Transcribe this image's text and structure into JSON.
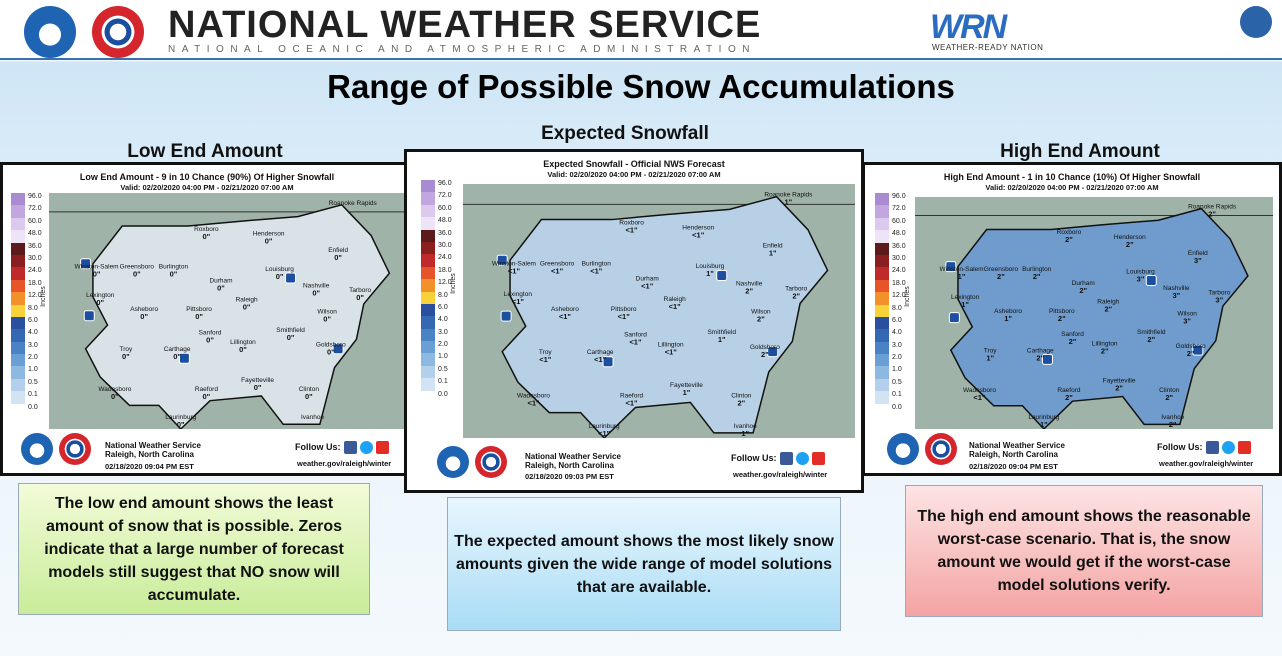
{
  "header": {
    "agency": "NATIONAL WEATHER SERVICE",
    "subagency": "NATIONAL OCEANIC AND ATMOSPHERIC ADMINISTRATION",
    "wrn_letters": "WRN",
    "wrn_tagline": "WEATHER-READY NATION",
    "logos": [
      "noaa-logo",
      "nws-logo",
      "wrn-logo",
      "commerce-logo"
    ]
  },
  "title": "Range of Possible Snow Accumulations",
  "legend": {
    "unit": "Inches",
    "labels": [
      "96.0",
      "72.0",
      "60.0",
      "48.0",
      "36.0",
      "30.0",
      "24.0",
      "18.0",
      "12.0",
      "8.0",
      "6.0",
      "4.0",
      "3.0",
      "2.0",
      "1.0",
      "0.5",
      "0.1",
      "0.0"
    ],
    "colors": [
      "#a98bd1",
      "#c2a6e0",
      "#dcc9ee",
      "#efe3f8",
      "#5c1a1a",
      "#8a1f1f",
      "#c02a2a",
      "#e8542a",
      "#f2902a",
      "#f9d23a",
      "#2a4f9c",
      "#3568b3",
      "#4a82c6",
      "#6a9fd6",
      "#8db8e2",
      "#b2d0ec",
      "#d2e3f3",
      "#ffffff"
    ]
  },
  "panels": [
    {
      "label": "Low End Amount",
      "map_title": "Low End Amount - 9 in 10 Chance (90%) Of Higher Snowfall",
      "valid": "Valid: 02/20/2020 04:00 PM - 02/21/2020 07:00 AM",
      "office_line1": "National Weather Service",
      "office_line2": "Raleigh, North Carolina",
      "issued": "02/18/2020 09:04 PM EST",
      "follow": "Follow Us:",
      "url": "weather.gov/raleigh/winter",
      "fill": "#d9e3e7",
      "cities": [
        {
          "n": "Roxboro",
          "v": "0\""
        },
        {
          "n": "Henderson",
          "v": "0\""
        },
        {
          "n": "Winston-Salem",
          "v": "0\""
        },
        {
          "n": "Greensboro",
          "v": "0\""
        },
        {
          "n": "Burlington",
          "v": "0\""
        },
        {
          "n": "Louisburg",
          "v": "0\""
        },
        {
          "n": "Enfield",
          "v": "0\""
        },
        {
          "n": "Durham",
          "v": "0\""
        },
        {
          "n": "Nashville",
          "v": "0\""
        },
        {
          "n": "Lexington",
          "v": "0\""
        },
        {
          "n": "Raleigh",
          "v": "0\""
        },
        {
          "n": "Tarboro",
          "v": "0\""
        },
        {
          "n": "Asheboro",
          "v": "0\""
        },
        {
          "n": "Pittsboro",
          "v": "0\""
        },
        {
          "n": "Wilson",
          "v": "0\""
        },
        {
          "n": "Sanford",
          "v": "0\""
        },
        {
          "n": "Smithfield",
          "v": "0\""
        },
        {
          "n": "Troy",
          "v": "0\""
        },
        {
          "n": "Carthage",
          "v": "0\""
        },
        {
          "n": "Lillington",
          "v": "0\""
        },
        {
          "n": "Goldsboro",
          "v": "0\""
        },
        {
          "n": "Fayetteville",
          "v": "0\""
        },
        {
          "n": "Wadesboro",
          "v": "0\""
        },
        {
          "n": "Raeford",
          "v": "0\""
        },
        {
          "n": "Clinton",
          "v": "0\""
        },
        {
          "n": "Laurinburg",
          "v": "0\""
        },
        {
          "n": "Roanoke Rapids",
          "v": ""
        },
        {
          "n": "Ivanhoe",
          "v": ""
        }
      ]
    },
    {
      "label": "Expected Snowfall",
      "map_title": "Expected Snowfall - Official NWS Forecast",
      "valid": "Valid: 02/20/2020 04:00 PM - 02/21/2020 07:00 AM",
      "office_line1": "National Weather Service",
      "office_line2": "Raleigh, North Carolina",
      "issued": "02/18/2020 09:03 PM EST",
      "follow": "Follow Us:",
      "url": "weather.gov/raleigh/winter",
      "fill": "#b7d0e6",
      "cities": [
        {
          "n": "Roanoke Rapids",
          "v": "1\""
        },
        {
          "n": "Roxboro",
          "v": "<1\""
        },
        {
          "n": "Henderson",
          "v": "<1\""
        },
        {
          "n": "Winston-Salem",
          "v": "<1\""
        },
        {
          "n": "Greensboro",
          "v": "<1\""
        },
        {
          "n": "Burlington",
          "v": "<1\""
        },
        {
          "n": "Louisburg",
          "v": "1\""
        },
        {
          "n": "Enfield",
          "v": "1\""
        },
        {
          "n": "Durham",
          "v": "<1\""
        },
        {
          "n": "Nashville",
          "v": "2\""
        },
        {
          "n": "Lexington",
          "v": "<1\""
        },
        {
          "n": "Raleigh",
          "v": "<1\""
        },
        {
          "n": "Tarboro",
          "v": "2\""
        },
        {
          "n": "Asheboro",
          "v": "<1\""
        },
        {
          "n": "Pittsboro",
          "v": "<1\""
        },
        {
          "n": "Wilson",
          "v": "2\""
        },
        {
          "n": "Sanford",
          "v": "<1\""
        },
        {
          "n": "Smithfield",
          "v": "1\""
        },
        {
          "n": "Troy",
          "v": "<1\""
        },
        {
          "n": "Carthage",
          "v": "<1\""
        },
        {
          "n": "Lillington",
          "v": "<1\""
        },
        {
          "n": "Goldsboro",
          "v": "2\""
        },
        {
          "n": "Fayetteville",
          "v": "1\""
        },
        {
          "n": "Wadesboro",
          "v": "<1\""
        },
        {
          "n": "Raeford",
          "v": "<1\""
        },
        {
          "n": "Clinton",
          "v": "2\""
        },
        {
          "n": "Laurinburg",
          "v": "<1\""
        },
        {
          "n": "Ivanhoe",
          "v": "1\""
        }
      ]
    },
    {
      "label": "High End Amount",
      "map_title": "High End Amount - 1 in 10 Chance (10%) Of Higher Snowfall",
      "valid": "Valid: 02/20/2020 04:00 PM - 02/21/2020 07:00 AM",
      "office_line1": "National Weather Service",
      "office_line2": "Raleigh, North Carolina",
      "issued": "02/18/2020 09:04 PM EST",
      "follow": "Follow Us:",
      "url": "weather.gov/raleigh/winter",
      "fill": "#6f9ccc",
      "cities": [
        {
          "n": "Roanoke Rapids",
          "v": "2\""
        },
        {
          "n": "Roxboro",
          "v": "2\""
        },
        {
          "n": "Henderson",
          "v": "2\""
        },
        {
          "n": "Winston-Salem",
          "v": "1\""
        },
        {
          "n": "Greensboro",
          "v": "2\""
        },
        {
          "n": "Burlington",
          "v": "2\""
        },
        {
          "n": "Louisburg",
          "v": "3\""
        },
        {
          "n": "Enfield",
          "v": "3\""
        },
        {
          "n": "Durham",
          "v": "2\""
        },
        {
          "n": "Nashville",
          "v": "3\""
        },
        {
          "n": "Lexington",
          "v": "1\""
        },
        {
          "n": "Raleigh",
          "v": "2\""
        },
        {
          "n": "Tarboro",
          "v": "3\""
        },
        {
          "n": "Asheboro",
          "v": "1\""
        },
        {
          "n": "Pittsboro",
          "v": "2\""
        },
        {
          "n": "Wilson",
          "v": "3\""
        },
        {
          "n": "Sanford",
          "v": "2\""
        },
        {
          "n": "Smithfield",
          "v": "2\""
        },
        {
          "n": "Troy",
          "v": "1\""
        },
        {
          "n": "Carthage",
          "v": "2\""
        },
        {
          "n": "Lillington",
          "v": "2\""
        },
        {
          "n": "Goldsboro",
          "v": "2\""
        },
        {
          "n": "Fayetteville",
          "v": "2\""
        },
        {
          "n": "Wadesboro",
          "v": "<1\""
        },
        {
          "n": "Raeford",
          "v": "2\""
        },
        {
          "n": "Clinton",
          "v": "2\""
        },
        {
          "n": "Laurinburg",
          "v": "1\""
        },
        {
          "n": "Ivanhoe",
          "v": "2\""
        }
      ]
    }
  ],
  "descriptions": {
    "low": "The low end amount shows the least amount of snow that is possible. Zeros indicate that a large number of forecast models still suggest that NO snow will accumulate.",
    "mid": "The expected amount shows the most likely snow amounts given the wide range of model solutions that are available.",
    "high": "The high end amount shows the reasonable worst-case scenario.  That is, the snow amount we would get if the worst-case model solutions verify."
  }
}
